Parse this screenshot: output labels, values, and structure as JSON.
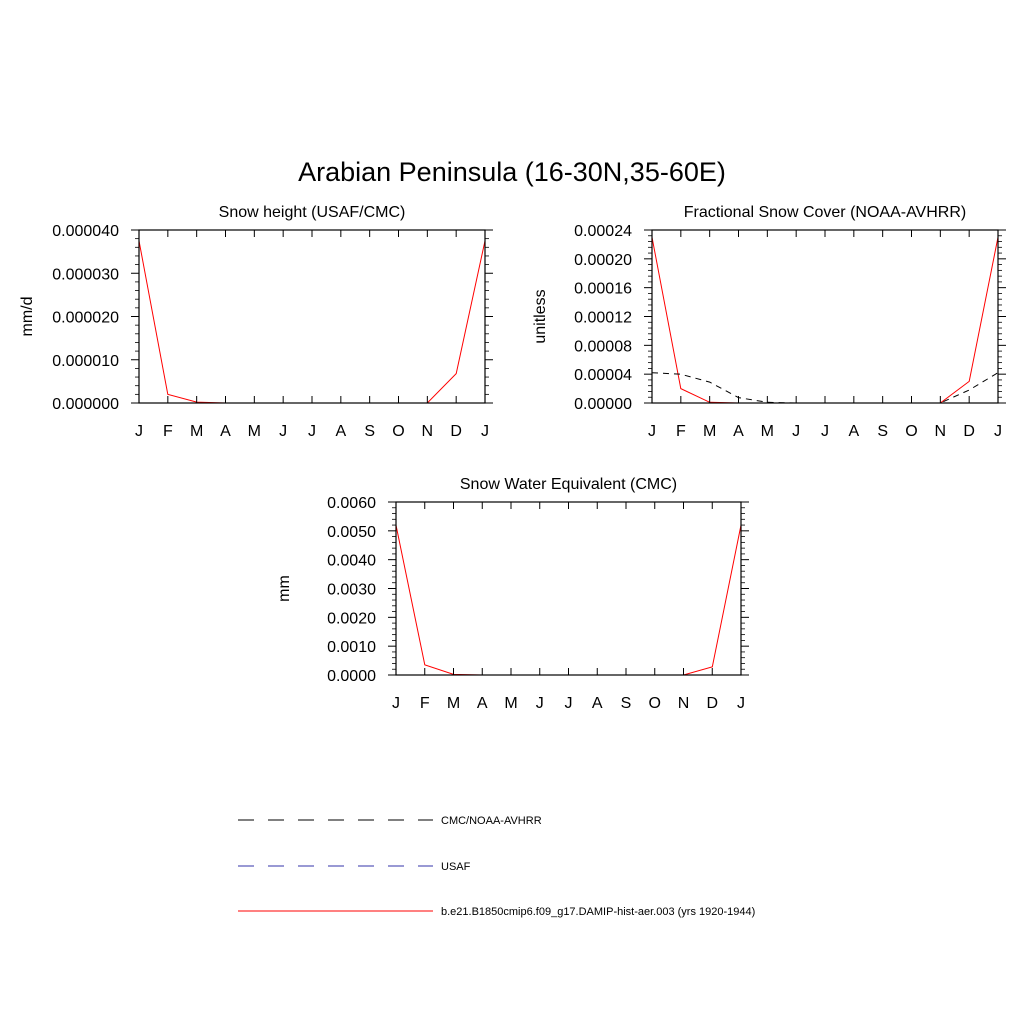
{
  "title": "Arabian Peninsula (16-30N,35-60E)",
  "chart_data": [
    {
      "type": "line",
      "title": "Snow height (USAF/CMC)",
      "xlabel": "",
      "ylabel": "mm/d",
      "categories": [
        "J",
        "F",
        "M",
        "A",
        "M",
        "J",
        "J",
        "A",
        "S",
        "O",
        "N",
        "D",
        "J"
      ],
      "ylim": [
        0,
        4e-05
      ],
      "yticks": [
        "0.000000",
        "0.000010",
        "0.000020",
        "0.000030",
        "0.000040"
      ],
      "grid": false,
      "series": [
        {
          "name": "b.e21.B1850cmip6.f09_g17.DAMIP-hist-aer.003 (yrs 1920-1944)",
          "color": "#ff0000",
          "dash": "solid",
          "values": [
            3.75e-05,
            2e-06,
            2e-07,
            0,
            0,
            0,
            0,
            0,
            0,
            0,
            0,
            6.8e-06,
            3.75e-05
          ]
        },
        {
          "name": "USAF",
          "color": "#3333aa",
          "dash": "dashed",
          "values": [
            0,
            0,
            0,
            0,
            0,
            0,
            0,
            0,
            0,
            0,
            0,
            0,
            0
          ]
        }
      ]
    },
    {
      "type": "line",
      "title": "Fractional Snow Cover (NOAA-AVHRR)",
      "xlabel": "",
      "ylabel": "unitless",
      "categories": [
        "J",
        "F",
        "M",
        "A",
        "M",
        "J",
        "J",
        "A",
        "S",
        "O",
        "N",
        "D",
        "J"
      ],
      "ylim": [
        0,
        0.00024
      ],
      "yticks": [
        "0.00000",
        "0.00004",
        "0.00008",
        "0.00012",
        "0.00016",
        "0.00020",
        "0.00024"
      ],
      "grid": false,
      "series": [
        {
          "name": "b.e21.B1850cmip6.f09_g17.DAMIP-hist-aer.003 (yrs 1920-1944)",
          "color": "#ff0000",
          "dash": "solid",
          "values": [
            0.00023,
            2e-05,
            1e-06,
            0,
            0,
            0,
            0,
            0,
            0,
            0,
            0,
            3e-05,
            0.00023
          ]
        },
        {
          "name": "CMC/NOAA-AVHRR",
          "color": "#000000",
          "dash": "dashed",
          "values": [
            4.2e-05,
            4e-05,
            2.9e-05,
            7.5e-06,
            1e-06,
            0,
            0,
            0,
            0,
            0,
            0,
            1.8e-05,
            4.2e-05
          ]
        }
      ]
    },
    {
      "type": "line",
      "title": "Snow Water Equivalent (CMC)",
      "xlabel": "",
      "ylabel": "mm",
      "categories": [
        "J",
        "F",
        "M",
        "A",
        "M",
        "J",
        "J",
        "A",
        "S",
        "O",
        "N",
        "D",
        "J"
      ],
      "ylim": [
        0,
        0.006
      ],
      "yticks": [
        "0.0000",
        "0.0010",
        "0.0020",
        "0.0030",
        "0.0040",
        "0.0050",
        "0.0060"
      ],
      "grid": false,
      "series": [
        {
          "name": "b.e21.B1850cmip6.f09_g17.DAMIP-hist-aer.003 (yrs 1920-1944)",
          "color": "#ff0000",
          "dash": "solid",
          "values": [
            0.0052,
            0.00035,
            2e-05,
            0,
            0,
            0,
            0,
            0,
            0,
            0,
            0,
            0.00028,
            0.0052
          ]
        },
        {
          "name": "CMC/NOAA-AVHRR",
          "color": "#000000",
          "dash": "dashed",
          "values": [
            0,
            0,
            0,
            0,
            0,
            0,
            0,
            0,
            0,
            0,
            0,
            0,
            0
          ]
        }
      ]
    }
  ],
  "legend": {
    "placement": "bottom",
    "items": [
      {
        "label": "CMC/NOAA-AVHRR",
        "color": "#000000",
        "dash": "dashed"
      },
      {
        "label": "USAF",
        "color": "#3333aa",
        "dash": "dashed"
      },
      {
        "label": "b.e21.B1850cmip6.f09_g17.DAMIP-hist-aer.003 (yrs 1920-1944)",
        "color": "#ff0000",
        "dash": "solid"
      }
    ]
  }
}
